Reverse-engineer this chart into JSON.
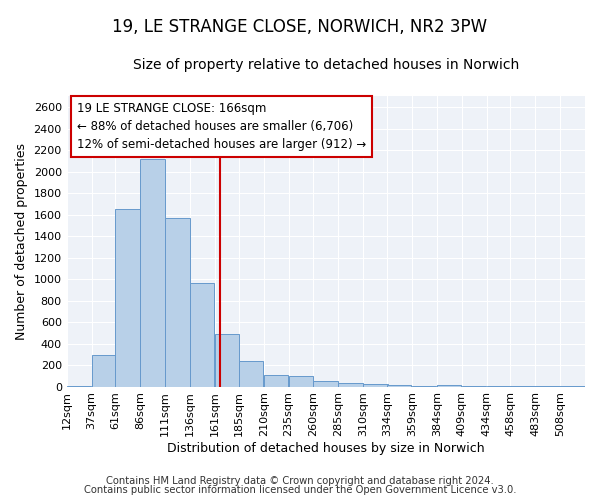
{
  "title": "19, LE STRANGE CLOSE, NORWICH, NR2 3PW",
  "subtitle": "Size of property relative to detached houses in Norwich",
  "xlabel": "Distribution of detached houses by size in Norwich",
  "ylabel": "Number of detached properties",
  "footer_line1": "Contains HM Land Registry data © Crown copyright and database right 2024.",
  "footer_line2": "Contains public sector information licensed under the Open Government Licence v3.0.",
  "annotation_title": "19 LE STRANGE CLOSE: 166sqm",
  "annotation_line2": "← 88% of detached houses are smaller (6,706)",
  "annotation_line3": "12% of semi-detached houses are larger (912) →",
  "bar_color": "#b8d0e8",
  "bar_edge_color": "#6699cc",
  "ref_line_color": "#cc0000",
  "ref_line_x": 166,
  "categories": [
    "12sqm",
    "37sqm",
    "61sqm",
    "86sqm",
    "111sqm",
    "136sqm",
    "161sqm",
    "185sqm",
    "210sqm",
    "235sqm",
    "260sqm",
    "285sqm",
    "310sqm",
    "334sqm",
    "359sqm",
    "384sqm",
    "409sqm",
    "434sqm",
    "458sqm",
    "483sqm",
    "508sqm"
  ],
  "bin_starts": [
    12,
    37,
    61,
    86,
    111,
    136,
    161,
    185,
    210,
    235,
    260,
    285,
    310,
    334,
    359,
    384,
    409,
    434,
    458,
    483,
    508
  ],
  "bin_width": 25,
  "values": [
    10,
    290,
    1650,
    2120,
    1570,
    960,
    490,
    240,
    110,
    95,
    50,
    30,
    20,
    15,
    10,
    15,
    5,
    10,
    5,
    5,
    10
  ],
  "ylim": [
    0,
    2700
  ],
  "yticks": [
    0,
    200,
    400,
    600,
    800,
    1000,
    1200,
    1400,
    1600,
    1800,
    2000,
    2200,
    2400,
    2600
  ],
  "background_color": "#ffffff",
  "plot_bg_color": "#eef2f8",
  "title_fontsize": 12,
  "subtitle_fontsize": 10,
  "axis_label_fontsize": 9,
  "tick_fontsize": 8,
  "annotation_fontsize": 8.5,
  "footer_fontsize": 7.2
}
